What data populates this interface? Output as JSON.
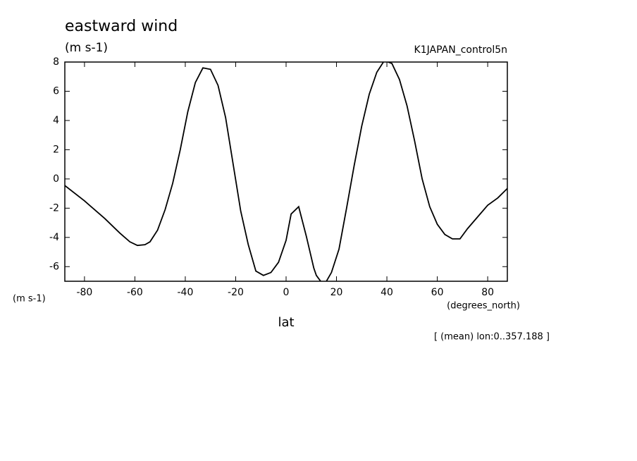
{
  "chart_data": {
    "type": "line",
    "title": "eastward wind",
    "units": "(m s-1)",
    "dataset": "K1JAPAN_control5n",
    "y_unit_label": "(m s-1)",
    "x_unit_label": "(degrees_north)",
    "xlabel": "lat",
    "note": "[ (mean) lon:0..357.188 ]",
    "x": [
      -87.8,
      -80,
      -72,
      -66,
      -62,
      -59,
      -56,
      -54,
      -51,
      -48,
      -45,
      -42,
      -39,
      -36,
      -33,
      -30,
      -27,
      -24,
      -21,
      -18,
      -15,
      -12,
      -9,
      -6,
      -3,
      0,
      2,
      5,
      8,
      11,
      12,
      15,
      18,
      21,
      24,
      27,
      30,
      33,
      36,
      39,
      42,
      45,
      48,
      51,
      54,
      57,
      60,
      63,
      66,
      69,
      72,
      76,
      80,
      84,
      87.8
    ],
    "series": [
      {
        "name": "eastward wind",
        "color": "#000000",
        "values": [
          -0.45,
          -1.5,
          -2.7,
          -3.7,
          -4.3,
          -4.55,
          -4.5,
          -4.3,
          -3.5,
          -2.1,
          -0.3,
          2.0,
          4.6,
          6.6,
          7.6,
          7.5,
          6.4,
          4.2,
          1.0,
          -2.2,
          -4.5,
          -6.3,
          -6.6,
          -6.4,
          -5.7,
          -4.2,
          -2.4,
          -1.9,
          -3.9,
          -6.1,
          -6.6,
          -7.3,
          -6.4,
          -4.8,
          -2.0,
          0.9,
          3.6,
          5.8,
          7.3,
          8.1,
          7.9,
          6.8,
          5.0,
          2.6,
          0.0,
          -1.9,
          -3.1,
          -3.8,
          -4.1,
          -4.1,
          -3.4,
          -2.6,
          -1.8,
          -1.3,
          -0.65
        ]
      }
    ],
    "xlim": [
      -87.8,
      87.8
    ],
    "ylim": [
      -7,
      8
    ],
    "xticks": [
      -80,
      -60,
      -40,
      -20,
      0,
      20,
      40,
      60,
      80
    ],
    "yticks": [
      -6,
      -4,
      -2,
      0,
      2,
      4,
      6,
      8
    ]
  }
}
